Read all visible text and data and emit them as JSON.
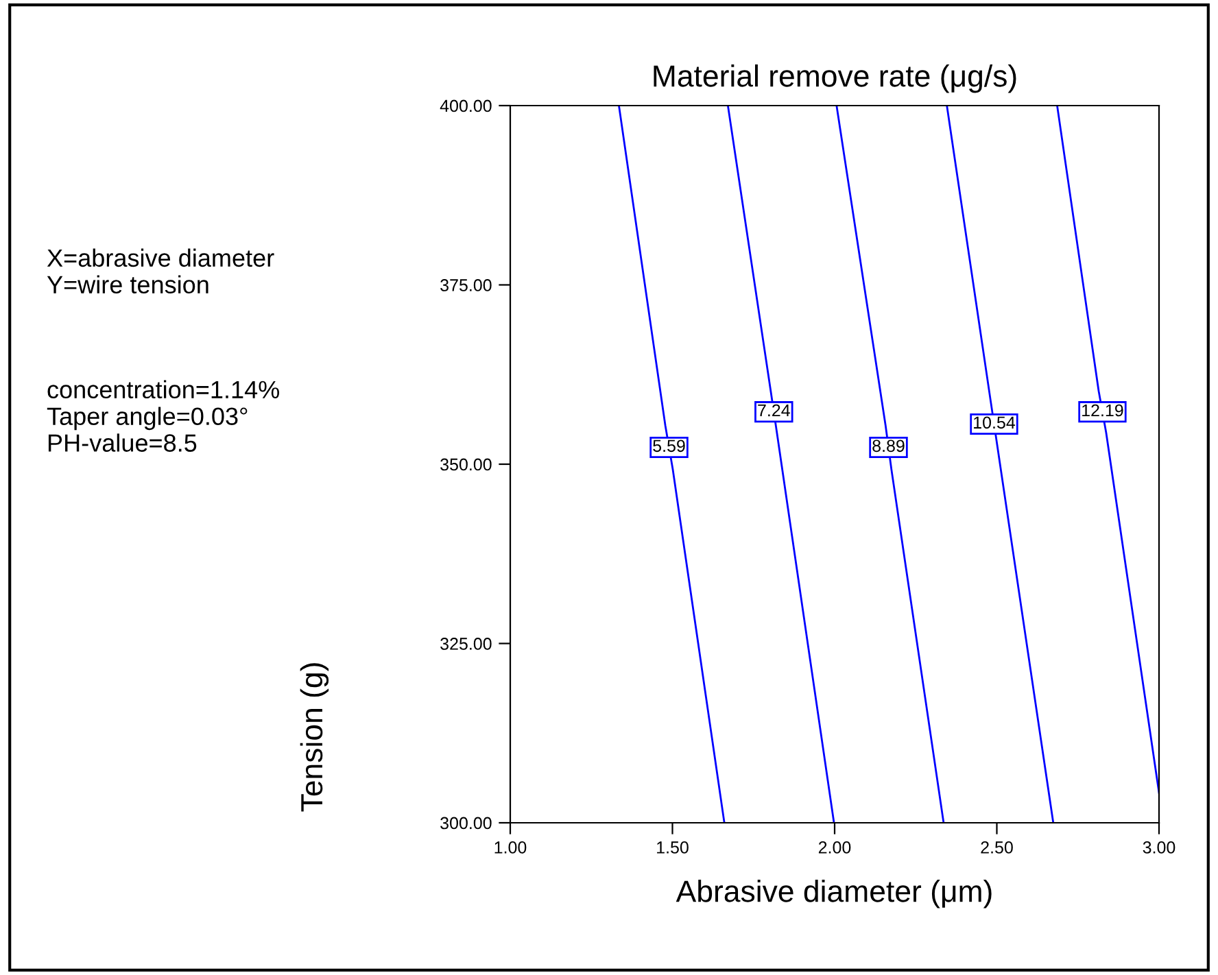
{
  "chart_data": {
    "type": "line",
    "title": "Material remove rate (μg/s)",
    "xlabel": "Abrasive diameter (μm)",
    "ylabel": "Tension (g)",
    "series": [
      {
        "name": "5.59",
        "color": "#0000ff",
        "x": [
          1.335,
          1.478,
          1.501,
          1.66
        ],
        "values": [
          400,
          355.4,
          349.3,
          300
        ]
      },
      {
        "name": "7.24",
        "color": "#0000ff",
        "x": [
          1.671,
          1.803,
          1.822,
          1.998
        ],
        "values": [
          400,
          360.2,
          354.4,
          300
        ]
      },
      {
        "name": "8.89",
        "color": "#0000ff",
        "x": [
          2.006,
          2.157,
          2.175,
          2.336
        ],
        "values": [
          400,
          355.4,
          349.3,
          300
        ]
      },
      {
        "name": "10.54",
        "color": "#0000ff",
        "x": [
          2.346,
          2.482,
          2.501,
          2.674
        ],
        "values": [
          400,
          358.5,
          352.7,
          300
        ]
      },
      {
        "name": "12.19",
        "color": "#0000ff",
        "x": [
          2.686,
          2.814,
          2.837,
          3.0
        ],
        "values": [
          400,
          360.2,
          354.4,
          304.2
        ]
      }
    ],
    "xlim": [
      1.0,
      3.0
    ],
    "ylim": [
      300,
      400
    ],
    "xticks": [
      {
        "value": 1,
        "label": "1.00"
      },
      {
        "value": 1.5,
        "label": "1.50"
      },
      {
        "value": 2,
        "label": "2.00"
      },
      {
        "value": 2.5,
        "label": "2.50"
      },
      {
        "value": 3,
        "label": "3.00"
      }
    ],
    "yticks": [
      {
        "value": 300,
        "label": "300.00"
      },
      {
        "value": 325,
        "label": "325.00"
      },
      {
        "value": 350,
        "label": "350.00"
      },
      {
        "value": 375,
        "label": "375.00"
      },
      {
        "value": 400,
        "label": "400.00"
      }
    ],
    "annotations": [
      "X=abrasive diameter\nY=wire tension",
      "concentration=1.14%\nTaper angle=0.03°\nPH-value=8.5"
    ],
    "grid": false,
    "legend": false,
    "marker": "none",
    "line_style": "solid"
  }
}
